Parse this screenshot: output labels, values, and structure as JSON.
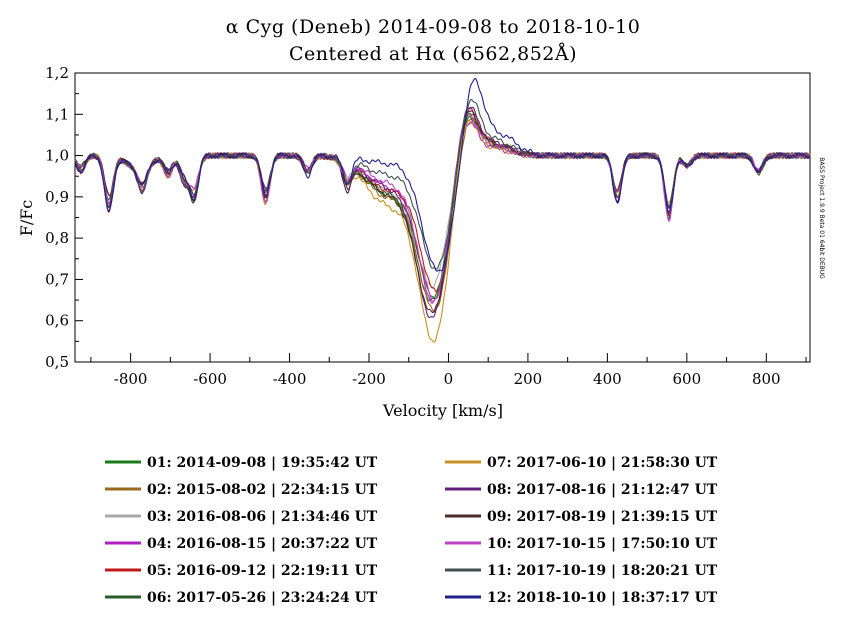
{
  "chart_data": {
    "type": "line",
    "title": "α Cyg (Deneb) 2014-09-08 to 2018-10-10",
    "subtitle": "Centered at Hα (6562,852Å)",
    "xlabel": "Velocity [km/s]",
    "ylabel": "F/Fc",
    "xlim": [
      -940,
      910
    ],
    "ylim": [
      0.5,
      1.2
    ],
    "x_ticks": [
      -800,
      -600,
      -400,
      -200,
      0,
      200,
      400,
      600,
      800
    ],
    "y_tick_labels": [
      "0,5",
      "0,6",
      "0,7",
      "0,8",
      "0,9",
      "1,0",
      "1,1",
      "1,2"
    ],
    "y_ticks": [
      0.5,
      0.6,
      0.7,
      0.8,
      0.9,
      1.0,
      1.1,
      1.2
    ],
    "grid": false,
    "legend_position": "bottom",
    "watermark": "BASS Project 1.9.9 Beta 01 64bit DEBUG",
    "telluric_lines": [
      {
        "v": -925,
        "d": 0.045
      },
      {
        "v": -855,
        "d": 0.16
      },
      {
        "v": -770,
        "d": 0.07
      },
      {
        "v": -705,
        "d": 0.06
      },
      {
        "v": -665,
        "d": 0.08
      },
      {
        "v": -640,
        "d": 0.13
      },
      {
        "v": -460,
        "d": 0.14
      },
      {
        "v": -355,
        "d": 0.05
      },
      {
        "v": -255,
        "d": 0.06
      },
      {
        "v": 425,
        "d": 0.1
      },
      {
        "v": 555,
        "d": 0.14
      },
      {
        "v": 600,
        "d": 0.025
      },
      {
        "v": 780,
        "d": 0.04
      }
    ],
    "series": [
      {
        "name": "01: 2014-09-08 | 19:35:42 UT",
        "color": "#1a7a1a",
        "min_v": -40,
        "min_f": 0.665,
        "peak_v": 45,
        "peak_f": 1.085,
        "shoulder": 0.9
      },
      {
        "name": "02: 2015-08-02 | 22:34:15 UT",
        "color": "#9a6a1c",
        "min_v": -35,
        "min_f": 0.64,
        "peak_v": 50,
        "peak_f": 1.075,
        "shoulder": 0.89
      },
      {
        "name": "03: 2016-08-06 | 21:34:46 UT",
        "color": "#a8a8a8",
        "min_v": -40,
        "min_f": 0.7,
        "peak_v": 45,
        "peak_f": 1.07,
        "shoulder": 0.91
      },
      {
        "name": "04: 2016-08-15 | 20:37:22 UT",
        "color": "#b020c0",
        "min_v": -35,
        "min_f": 0.655,
        "peak_v": 40,
        "peak_f": 1.06,
        "shoulder": 0.92
      },
      {
        "name": "05: 2016-09-12 | 22:19:11 UT",
        "color": "#c01818",
        "min_v": -30,
        "min_f": 0.68,
        "peak_v": 45,
        "peak_f": 1.09,
        "shoulder": 0.91
      },
      {
        "name": "06: 2017-05-26 | 23:24:24 UT",
        "color": "#2a5a2a",
        "min_v": -35,
        "min_f": 0.67,
        "peak_v": 45,
        "peak_f": 1.075,
        "shoulder": 0.9
      },
      {
        "name": "07: 2017-06-10 | 21:58:30 UT",
        "color": "#c89020",
        "min_v": -35,
        "min_f": 0.57,
        "peak_v": 40,
        "peak_f": 1.06,
        "shoulder": 0.87
      },
      {
        "name": "08: 2017-08-16 | 21:12:47 UT",
        "color": "#60207a",
        "min_v": -40,
        "min_f": 0.62,
        "peak_v": 45,
        "peak_f": 1.1,
        "shoulder": 0.92
      },
      {
        "name": "09: 2017-08-19 | 21:39:15 UT",
        "color": "#4a2a2a",
        "min_v": -40,
        "min_f": 0.635,
        "peak_v": 45,
        "peak_f": 1.09,
        "shoulder": 0.9
      },
      {
        "name": "10: 2017-10-15 | 17:50:10 UT",
        "color": "#c040c8",
        "min_v": -35,
        "min_f": 0.66,
        "peak_v": 40,
        "peak_f": 1.08,
        "shoulder": 0.93
      },
      {
        "name": "11: 2017-10-19 | 18:20:21 UT",
        "color": "#405050",
        "min_v": -30,
        "min_f": 0.73,
        "peak_v": 50,
        "peak_f": 1.12,
        "shoulder": 0.95
      },
      {
        "name": "12: 2018-10-10 | 18:37:17 UT",
        "color": "#20208a",
        "min_v": -25,
        "min_f": 0.72,
        "peak_v": 60,
        "peak_f": 1.165,
        "shoulder": 0.98
      }
    ]
  }
}
